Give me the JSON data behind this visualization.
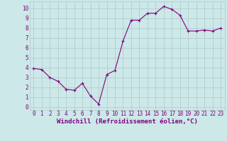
{
  "x": [
    0,
    1,
    2,
    3,
    4,
    5,
    6,
    7,
    8,
    9,
    10,
    11,
    12,
    13,
    14,
    15,
    16,
    17,
    18,
    19,
    20,
    21,
    22,
    23
  ],
  "y": [
    3.9,
    3.8,
    3.0,
    2.6,
    1.8,
    1.7,
    2.4,
    1.1,
    0.3,
    3.3,
    3.7,
    6.7,
    8.8,
    8.8,
    9.5,
    9.5,
    10.2,
    9.9,
    9.3,
    7.7,
    7.7,
    7.8,
    7.7,
    8.0
  ],
  "line_color": "#800080",
  "marker": "+",
  "marker_size": 3,
  "bg_color": "#cce8e8",
  "grid_color": "#b0c8c8",
  "xlabel": "Windchill (Refroidissement éolien,°C)",
  "xlabel_color": "#800080",
  "xlabel_fontsize": 6.5,
  "tick_fontsize": 5.5,
  "tick_color": "#800080",
  "ylim": [
    -0.3,
    10.7
  ],
  "xlim": [
    -0.5,
    23.5
  ],
  "yticks": [
    0,
    1,
    2,
    3,
    4,
    5,
    6,
    7,
    8,
    9,
    10
  ],
  "xticks": [
    0,
    1,
    2,
    3,
    4,
    5,
    6,
    7,
    8,
    9,
    10,
    11,
    12,
    13,
    14,
    15,
    16,
    17,
    18,
    19,
    20,
    21,
    22,
    23
  ]
}
